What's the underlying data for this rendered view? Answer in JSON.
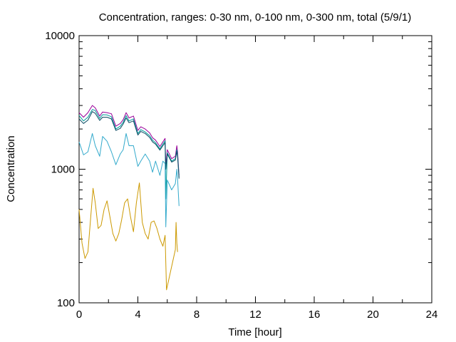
{
  "chart_data": {
    "type": "line",
    "title": "Concentration, ranges: 0-30 nm, 0-100 nm, 0-300 nm, total (5/9/1)",
    "xlabel": "Time [hour]",
    "ylabel": "Concentration",
    "xlim": [
      0,
      24
    ],
    "ylim": [
      100,
      10000
    ],
    "yscale": "log",
    "xticks": [
      0,
      4,
      8,
      12,
      16,
      20,
      24
    ],
    "yticks": [
      100,
      1000,
      10000
    ],
    "xtick_labels": [
      "0",
      "4",
      "8",
      "12",
      "16",
      "20",
      "24"
    ],
    "ytick_labels": [
      "100",
      "1000",
      "10000"
    ],
    "grid": false,
    "series": [
      {
        "color": "#990099",
        "x": [
          0,
          0.3,
          0.6,
          0.9,
          1.1,
          1.4,
          1.6,
          1.9,
          2.2,
          2.5,
          2.8,
          3.0,
          3.2,
          3.4,
          3.7,
          4.0,
          4.2,
          4.5,
          4.8,
          5.0,
          5.2,
          5.5,
          5.7,
          5.85,
          5.9,
          6.0,
          6.3,
          6.55,
          6.65,
          6.7,
          6.8
        ],
        "y": [
          2650,
          2450,
          2650,
          3000,
          2880,
          2500,
          2680,
          2650,
          2600,
          2100,
          2200,
          2350,
          2650,
          2420,
          2500,
          1950,
          2080,
          2000,
          1870,
          1720,
          1650,
          1480,
          1600,
          1700,
          1050,
          1400,
          1200,
          1250,
          1500,
          1350,
          900
        ]
      },
      {
        "color": "#009999",
        "x": [
          0,
          0.3,
          0.6,
          0.9,
          1.1,
          1.4,
          1.6,
          1.9,
          2.2,
          2.5,
          2.8,
          3.0,
          3.2,
          3.4,
          3.7,
          4.0,
          4.2,
          4.5,
          4.8,
          5.0,
          5.2,
          5.5,
          5.7,
          5.85,
          5.9,
          6.0,
          6.3,
          6.55,
          6.65,
          6.7,
          6.8
        ],
        "y": [
          2520,
          2300,
          2450,
          2800,
          2750,
          2400,
          2560,
          2550,
          2470,
          2000,
          2100,
          2250,
          2520,
          2300,
          2380,
          1850,
          1980,
          1900,
          1780,
          1650,
          1580,
          1420,
          1540,
          1630,
          600,
          1330,
          1150,
          1200,
          1400,
          1290,
          870
        ]
      },
      {
        "color": "#0a4a63",
        "x": [
          0,
          0.3,
          0.6,
          0.9,
          1.1,
          1.4,
          1.6,
          1.9,
          2.2,
          2.5,
          2.8,
          3.0,
          3.2,
          3.4,
          3.7,
          4.0,
          4.2,
          4.5,
          4.8,
          5.0,
          5.2,
          5.5,
          5.7,
          5.85,
          5.9,
          6.0,
          6.3,
          6.55,
          6.65,
          6.7,
          6.8
        ],
        "y": [
          2380,
          2200,
          2330,
          2700,
          2620,
          2320,
          2450,
          2450,
          2380,
          1950,
          2020,
          2180,
          2420,
          2230,
          2300,
          1800,
          1920,
          1850,
          1730,
          1600,
          1540,
          1390,
          1500,
          1580,
          1000,
          1300,
          1130,
          1170,
          1360,
          1250,
          850
        ]
      },
      {
        "color": "#33aacc",
        "x": [
          0,
          0.3,
          0.6,
          0.9,
          1.1,
          1.4,
          1.6,
          1.9,
          2.2,
          2.5,
          2.8,
          3.0,
          3.2,
          3.4,
          3.7,
          4.0,
          4.2,
          4.5,
          4.8,
          5.0,
          5.2,
          5.5,
          5.7,
          5.85,
          5.9,
          6.0,
          6.3,
          6.55,
          6.65,
          6.7,
          6.8
        ],
        "y": [
          1600,
          1280,
          1350,
          1850,
          1500,
          1250,
          1760,
          1620,
          1350,
          1080,
          1300,
          1400,
          1850,
          1500,
          1500,
          1050,
          1150,
          1300,
          1150,
          950,
          1150,
          900,
          1150,
          1100,
          370,
          830,
          700,
          780,
          1000,
          850,
          530
        ]
      },
      {
        "color": "#cc9900",
        "x": [
          0,
          0.2,
          0.4,
          0.6,
          0.8,
          0.95,
          1.1,
          1.3,
          1.5,
          1.7,
          1.9,
          2.1,
          2.3,
          2.5,
          2.7,
          2.9,
          3.1,
          3.3,
          3.5,
          3.7,
          3.9,
          4.1,
          4.3,
          4.5,
          4.7,
          4.9,
          5.1,
          5.3,
          5.5,
          5.7,
          5.85,
          5.95,
          6.55,
          6.6,
          6.65,
          6.7
        ],
        "y": [
          500,
          280,
          215,
          240,
          450,
          720,
          560,
          360,
          380,
          500,
          580,
          440,
          330,
          290,
          330,
          420,
          560,
          600,
          440,
          340,
          560,
          790,
          400,
          330,
          300,
          400,
          410,
          360,
          300,
          265,
          320,
          125,
          250,
          400,
          280,
          240
        ]
      }
    ]
  }
}
